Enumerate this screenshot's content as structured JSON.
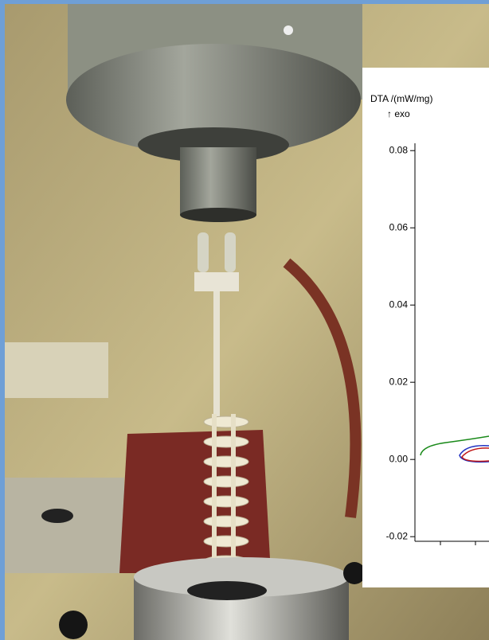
{
  "chart_data": {
    "type": "line",
    "ylabel": "DTA /(mW/mg)",
    "annotation": "↑ exo",
    "ylim": [
      -0.0212,
      0.0819
    ],
    "yticks": [
      0.08,
      0.06,
      0.04,
      0.02,
      {
        "value": 0,
        "label": "0.00"
      },
      -0.02
    ]
  }
}
